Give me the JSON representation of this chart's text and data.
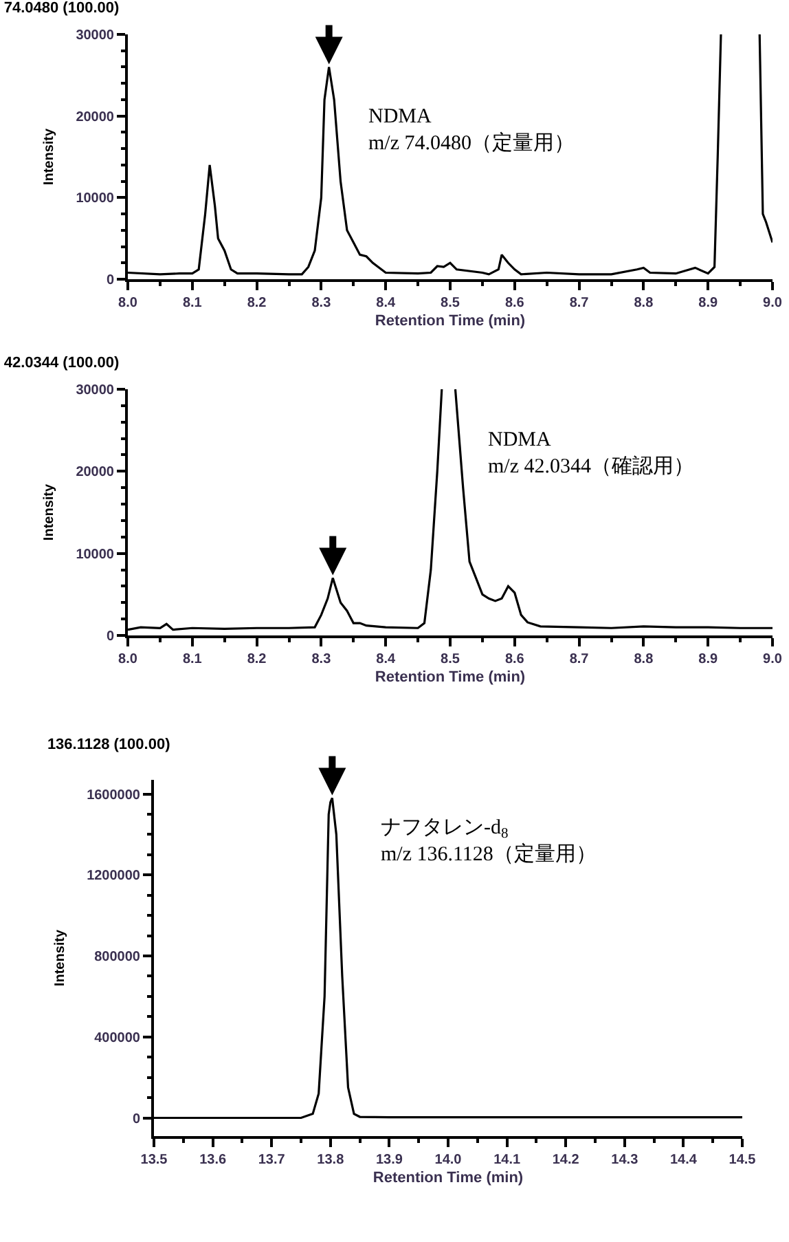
{
  "chart_data": [
    {
      "type": "line",
      "title": "74.0480 (100.00)",
      "xlabel": "Retention Time (min)",
      "ylabel": "Intensity",
      "x": [
        8.0,
        8.05,
        8.08,
        8.1,
        8.11,
        8.12,
        8.127,
        8.135,
        8.14,
        8.15,
        8.16,
        8.17,
        8.2,
        8.25,
        8.27,
        8.28,
        8.29,
        8.3,
        8.305,
        8.312,
        8.32,
        8.33,
        8.34,
        8.35,
        8.36,
        8.37,
        8.38,
        8.4,
        8.45,
        8.47,
        8.48,
        8.49,
        8.5,
        8.51,
        8.55,
        8.56,
        8.575,
        8.58,
        8.59,
        8.6,
        8.61,
        8.65,
        8.7,
        8.75,
        8.79,
        8.8,
        8.81,
        8.85,
        8.88,
        8.9,
        8.91,
        8.915,
        8.92,
        8.95,
        8.98,
        8.985,
        8.99,
        9.0
      ],
      "series": [
        {
          "color": "#000000",
          "values": [
            800,
            600,
            700,
            700,
            1200,
            8000,
            14000,
            9000,
            5000,
            3500,
            1200,
            700,
            700,
            600,
            600,
            1500,
            3500,
            10000,
            22000,
            26000,
            22000,
            12000,
            6000,
            4500,
            3000,
            2800,
            2000,
            800,
            700,
            800,
            1600,
            1500,
            2000,
            1200,
            800,
            600,
            1200,
            3000,
            2000,
            1200,
            600,
            800,
            600,
            600,
            1200,
            1400,
            800,
            700,
            1400,
            700,
            1500,
            15000,
            30000,
            null,
            30000,
            8000,
            7000,
            4500
          ]
        }
      ],
      "xlim": [
        8.0,
        9.0
      ],
      "xticks": [
        {
          "value": 8.0,
          "label": "8.0"
        },
        {
          "value": 8.1,
          "label": "8.1"
        },
        {
          "value": 8.2,
          "label": "8.2"
        },
        {
          "value": 8.3,
          "label": "8.3"
        },
        {
          "value": 8.4,
          "label": "8.4"
        },
        {
          "value": 8.5,
          "label": "8.5"
        },
        {
          "value": 8.6,
          "label": "8.6"
        },
        {
          "value": 8.7,
          "label": "8.7"
        },
        {
          "value": 8.8,
          "label": "8.8"
        },
        {
          "value": 8.9,
          "label": "8.9"
        },
        {
          "value": 9.0,
          "label": "9.0"
        }
      ],
      "ylim": [
        0,
        30000
      ],
      "yticks": [
        0,
        10000,
        20000,
        30000
      ],
      "annotations": [
        {
          "text": "NDMA\nm/z 74.0480（定量用）",
          "x": 8.312,
          "y": 26000
        }
      ]
    },
    {
      "type": "line",
      "title": "42.0344 (100.00)",
      "xlabel": "Retention Time (min)",
      "ylabel": "Intensity",
      "x": [
        8.0,
        8.02,
        8.05,
        8.06,
        8.07,
        8.1,
        8.15,
        8.2,
        8.25,
        8.29,
        8.3,
        8.31,
        8.318,
        8.33,
        8.34,
        8.35,
        8.36,
        8.37,
        8.4,
        8.45,
        8.46,
        8.47,
        8.48,
        8.487,
        8.5,
        8.508,
        8.52,
        8.53,
        8.54,
        8.55,
        8.56,
        8.57,
        8.58,
        8.59,
        8.6,
        8.61,
        8.62,
        8.64,
        8.7,
        8.75,
        8.8,
        8.85,
        8.9,
        8.95,
        9.0
      ],
      "series": [
        {
          "color": "#000000",
          "values": [
            700,
            1000,
            900,
            1400,
            700,
            900,
            800,
            900,
            900,
            1000,
            2500,
            4500,
            7000,
            4000,
            3000,
            1500,
            1500,
            1200,
            1000,
            900,
            1500,
            8000,
            20000,
            30000,
            null,
            30000,
            18000,
            9000,
            7000,
            5000,
            4500,
            4200,
            4500,
            6000,
            5200,
            2500,
            1600,
            1100,
            1000,
            900,
            1100,
            1000,
            1000,
            900,
            900
          ]
        }
      ],
      "xlim": [
        8.0,
        9.0
      ],
      "xticks": [
        {
          "value": 8.0,
          "label": "8.0"
        },
        {
          "value": 8.1,
          "label": "8.1"
        },
        {
          "value": 8.2,
          "label": "8.2"
        },
        {
          "value": 8.3,
          "label": "8.3"
        },
        {
          "value": 8.4,
          "label": "8.4"
        },
        {
          "value": 8.5,
          "label": "8.5"
        },
        {
          "value": 8.6,
          "label": "8.6"
        },
        {
          "value": 8.7,
          "label": "8.7"
        },
        {
          "value": 8.8,
          "label": "8.8"
        },
        {
          "value": 8.9,
          "label": "8.9"
        },
        {
          "value": 9.0,
          "label": "9.0"
        }
      ],
      "ylim": [
        0,
        30000
      ],
      "yticks": [
        0,
        10000,
        20000,
        30000
      ],
      "annotations": [
        "NDMA\nm/z 42.0344（確認用）"
      ]
    },
    {
      "type": "line",
      "title": "136.1128 (100.00)",
      "xlabel": "Retention Time (min)",
      "ylabel": "Intensity",
      "x": [
        13.5,
        13.6,
        13.7,
        13.75,
        13.77,
        13.78,
        13.79,
        13.797,
        13.8,
        13.803,
        13.81,
        13.82,
        13.83,
        13.84,
        13.85,
        13.9,
        14.0,
        14.2,
        14.4,
        14.5
      ],
      "series": [
        {
          "color": "#000000",
          "values": [
            0,
            0,
            0,
            0,
            20000,
            120000,
            600000,
            1500000,
            1560000,
            1580000,
            1400000,
            700000,
            150000,
            20000,
            5000,
            3000,
            3000,
            3000,
            3000,
            3000
          ]
        }
      ],
      "xlim": [
        13.5,
        14.5
      ],
      "xticks": [
        {
          "value": 13.5,
          "label": "13.5"
        },
        {
          "value": 13.6,
          "label": "13.6"
        },
        {
          "value": 13.7,
          "label": "13.7"
        },
        {
          "value": 13.8,
          "label": "13.8"
        },
        {
          "value": 13.9,
          "label": "13.9"
        },
        {
          "value": 14.0,
          "label": "14.0"
        },
        {
          "value": 14.1,
          "label": "14.1"
        },
        {
          "value": 14.2,
          "label": "14.2"
        },
        {
          "value": 14.3,
          "label": "14.3"
        },
        {
          "value": 14.4,
          "label": "14.4"
        },
        {
          "value": 14.5,
          "label": "14.5"
        }
      ],
      "ylim": [
        -90000,
        1670000
      ],
      "yticks": [
        0,
        400000,
        800000,
        1200000,
        1600000
      ],
      "annotations": [
        {
          "text": "ナフタレン-d$_{8}$\nm/z 136.1128（定量用）",
          "x": 13.803,
          "y": 1580000
        }
      ]
    }
  ]
}
